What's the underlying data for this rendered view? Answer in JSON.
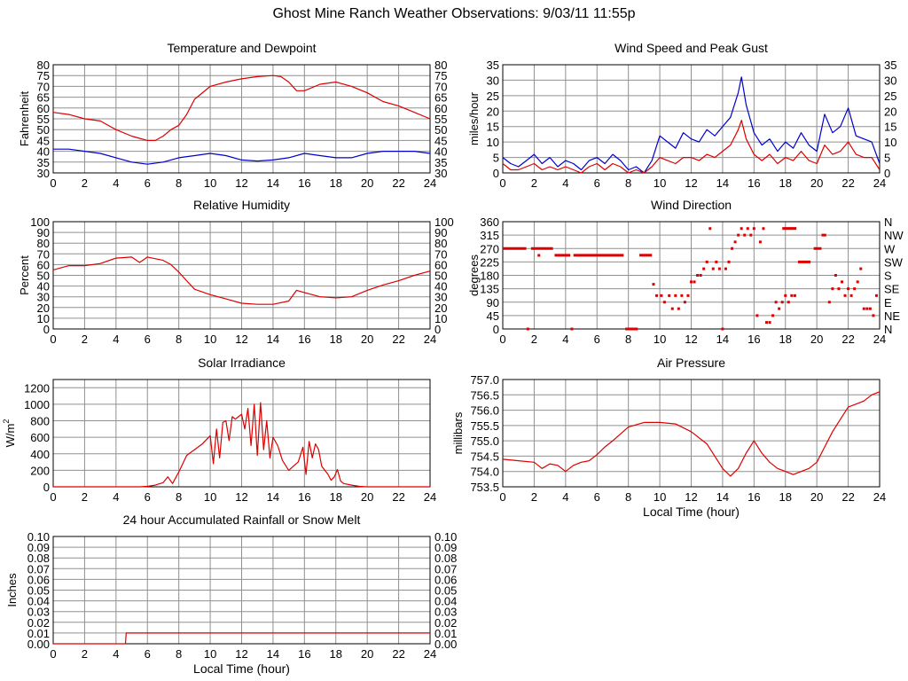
{
  "page": {
    "title": "Ghost Mine Ranch Weather Observations: 9/03/11 11:55p"
  },
  "colors": {
    "red": "#dd0000",
    "blue": "#0000cc",
    "grid": "#909090",
    "frame": "#000000"
  },
  "chart_data": [
    {
      "id": "temperature",
      "type": "line",
      "title": "Temperature and Dewpoint",
      "xlabel": "",
      "ylabel": "Fahrenheit",
      "xlim": [
        0,
        24
      ],
      "ylim": [
        30,
        80
      ],
      "xticks": [
        0,
        2,
        4,
        6,
        8,
        10,
        12,
        14,
        16,
        18,
        20,
        22,
        24
      ],
      "yticks": [
        30,
        35,
        40,
        45,
        50,
        55,
        60,
        65,
        70,
        75,
        80
      ],
      "right_ticks": [
        "30",
        "35",
        "40",
        "45",
        "50",
        "55",
        "60",
        "65",
        "70",
        "75",
        "80"
      ],
      "series": [
        {
          "name": "Temperature",
          "color": "red",
          "x": [
            0,
            1,
            2,
            3,
            4,
            5,
            5.5,
            6,
            6.5,
            7,
            7.5,
            8,
            8.5,
            9,
            10,
            11,
            12,
            13,
            14,
            14.5,
            15,
            15.5,
            16,
            17,
            18,
            19,
            20,
            21,
            22,
            23,
            24
          ],
          "y": [
            58,
            57,
            55,
            54,
            50,
            47,
            46,
            45,
            45,
            47,
            50,
            52,
            57,
            64,
            70,
            72,
            73.5,
            74.5,
            75,
            74.5,
            72,
            68,
            68,
            71,
            72,
            70,
            67,
            63,
            61,
            58,
            55
          ]
        },
        {
          "name": "Dewpoint",
          "color": "blue",
          "x": [
            0,
            1,
            2,
            3,
            4,
            5,
            6,
            7,
            8,
            9,
            10,
            11,
            12,
            13,
            14,
            15,
            16,
            17,
            18,
            19,
            20,
            21,
            22,
            23,
            24
          ],
          "y": [
            41,
            41,
            40,
            39,
            37,
            35,
            34,
            35,
            37,
            38,
            39,
            38,
            36,
            35.5,
            36,
            37,
            39,
            38,
            37,
            37,
            39,
            40,
            40,
            40,
            39
          ]
        }
      ]
    },
    {
      "id": "wind-speed",
      "type": "line",
      "title": "Wind Speed and Peak Gust",
      "xlabel": "",
      "ylabel": "miles/hour",
      "xlim": [
        0,
        24
      ],
      "ylim": [
        0,
        35
      ],
      "xticks": [
        0,
        2,
        4,
        6,
        8,
        10,
        12,
        14,
        16,
        18,
        20,
        22,
        24
      ],
      "yticks": [
        0,
        5,
        10,
        15,
        20,
        25,
        30,
        35
      ],
      "right_ticks": [
        "0",
        "5",
        "10",
        "15",
        "20",
        "25",
        "30",
        "35"
      ],
      "series": [
        {
          "name": "Peak Gust",
          "color": "blue",
          "x": [
            0,
            0.5,
            1,
            1.5,
            2,
            2.5,
            3,
            3.5,
            4,
            4.5,
            5,
            5.5,
            6,
            6.5,
            7,
            7.5,
            8,
            8.5,
            9,
            9.5,
            10,
            10.5,
            11,
            11.5,
            12,
            12.5,
            13,
            13.5,
            14,
            14.5,
            15,
            15.2,
            15.5,
            16,
            16.5,
            17,
            17.5,
            18,
            18.5,
            19,
            19.5,
            20,
            20.5,
            21,
            21.5,
            22,
            22.5,
            23,
            23.5,
            24
          ],
          "y": [
            5,
            3,
            2,
            4,
            6,
            3,
            5,
            2,
            4,
            3,
            1,
            4,
            5,
            3,
            6,
            4,
            1,
            2,
            0,
            4,
            12,
            10,
            8,
            13,
            11,
            10,
            14,
            12,
            15,
            18,
            26,
            31,
            22,
            13,
            9,
            11,
            7,
            10,
            8,
            13,
            9,
            7,
            19,
            13,
            15,
            21,
            12,
            11,
            10,
            3
          ]
        },
        {
          "name": "Wind Speed",
          "color": "red",
          "x": [
            0,
            0.5,
            1,
            1.5,
            2,
            2.5,
            3,
            3.5,
            4,
            4.5,
            5,
            5.5,
            6,
            6.5,
            7,
            7.5,
            8,
            8.5,
            9,
            9.5,
            10,
            10.5,
            11,
            11.5,
            12,
            12.5,
            13,
            13.5,
            14,
            14.5,
            15,
            15.2,
            15.5,
            16,
            16.5,
            17,
            17.5,
            18,
            18.5,
            19,
            19.5,
            20,
            20.5,
            21,
            21.5,
            22,
            22.5,
            23,
            23.5,
            24
          ],
          "y": [
            3,
            1,
            1,
            2,
            3,
            1,
            2,
            1,
            2,
            1,
            0,
            2,
            3,
            1,
            3,
            2,
            0,
            1,
            0,
            2,
            5,
            4,
            3,
            5,
            5,
            4,
            6,
            5,
            7,
            9,
            14,
            17,
            11,
            6,
            4,
            6,
            3,
            5,
            4,
            7,
            4,
            3,
            9,
            6,
            7,
            10,
            6,
            5,
            5,
            1
          ]
        }
      ]
    },
    {
      "id": "humidity",
      "type": "line",
      "title": "Relative Humidity",
      "xlabel": "",
      "ylabel": "Percent",
      "xlim": [
        0,
        24
      ],
      "ylim": [
        0,
        100
      ],
      "xticks": [
        0,
        2,
        4,
        6,
        8,
        10,
        12,
        14,
        16,
        18,
        20,
        22,
        24
      ],
      "yticks": [
        0,
        10,
        20,
        30,
        40,
        50,
        60,
        70,
        80,
        90,
        100
      ],
      "right_ticks": [
        "0",
        "10",
        "20",
        "30",
        "40",
        "50",
        "60",
        "70",
        "80",
        "90",
        "100"
      ],
      "series": [
        {
          "name": "Relative Humidity",
          "color": "red",
          "x": [
            0,
            1,
            2,
            3,
            4,
            5,
            5.5,
            6,
            7,
            7.5,
            8,
            8.5,
            9,
            10,
            11,
            12,
            13,
            14,
            15,
            15.5,
            16,
            17,
            18,
            19,
            20,
            21,
            22,
            23,
            24
          ],
          "y": [
            55,
            59,
            59,
            61,
            66,
            67,
            62,
            67,
            64,
            60,
            53,
            45,
            37,
            32,
            28,
            24,
            23,
            23,
            26,
            36,
            34,
            30,
            29,
            30,
            36,
            41,
            45,
            50,
            54
          ]
        }
      ]
    },
    {
      "id": "wind-direction",
      "type": "scatter",
      "title": "Wind Direction",
      "xlabel": "",
      "ylabel": "degrees",
      "xlim": [
        0,
        24
      ],
      "ylim": [
        0,
        360
      ],
      "xticks": [
        0,
        2,
        4,
        6,
        8,
        10,
        12,
        14,
        16,
        18,
        20,
        22,
        24
      ],
      "yticks": [
        0,
        45,
        90,
        135,
        180,
        225,
        270,
        315,
        360
      ],
      "right_ticks": [
        "N",
        "NE",
        "E",
        "SE",
        "S",
        "SW",
        "W",
        "NW",
        "N"
      ],
      "segments": [
        {
          "x0": 0,
          "x1": 1.5,
          "y": 270
        },
        {
          "x0": 1.8,
          "x1": 3.2,
          "y": 270
        },
        {
          "x0": 3.3,
          "x1": 4.3,
          "y": 247.5
        },
        {
          "x0": 4.5,
          "x1": 7.7,
          "y": 247.5
        },
        {
          "x0": 8.7,
          "x1": 9.5,
          "y": 247.5
        },
        {
          "x0": 7.8,
          "x1": 8.6,
          "y": 0
        },
        {
          "x0": 17.8,
          "x1": 18.7,
          "y": 337.5
        },
        {
          "x0": 18.8,
          "x1": 19.6,
          "y": 225
        },
        {
          "x0": 19.8,
          "x1": 20.3,
          "y": 270
        },
        {
          "x0": 20.3,
          "x1": 20.6,
          "y": 315
        }
      ],
      "points": {
        "x": [
          1.6,
          2.3,
          4.4,
          9.6,
          9.8,
          10.1,
          10.3,
          10.6,
          10.8,
          11.0,
          11.2,
          11.4,
          11.6,
          11.8,
          12.0,
          12.2,
          12.4,
          12.6,
          12.8,
          13.0,
          13.2,
          13.4,
          13.6,
          13.8,
          14.0,
          14.2,
          14.4,
          14.6,
          14.8,
          15.0,
          15.2,
          15.4,
          15.6,
          15.8,
          16.0,
          16.2,
          16.4,
          16.6,
          16.8,
          17.0,
          17.2,
          17.4,
          17.6,
          17.8,
          18.0,
          18.2,
          18.4,
          18.6,
          20.8,
          21.0,
          21.2,
          21.4,
          21.6,
          21.8,
          22.0,
          22.2,
          22.4,
          22.6,
          22.8,
          23.0,
          23.2,
          23.4,
          23.6,
          23.8
        ],
        "y": [
          0,
          247,
          0,
          150,
          112,
          112,
          90,
          112,
          68,
          112,
          68,
          112,
          90,
          112,
          158,
          158,
          180,
          180,
          202,
          225,
          337,
          202,
          225,
          202,
          0,
          202,
          225,
          270,
          292,
          315,
          337,
          315,
          337,
          315,
          337,
          45,
          292,
          337,
          22,
          22,
          45,
          90,
          68,
          90,
          112,
          90,
          112,
          112,
          90,
          135,
          180,
          135,
          158,
          112,
          135,
          112,
          135,
          158,
          202,
          68,
          68,
          68,
          45,
          112
        ]
      }
    },
    {
      "id": "solar",
      "type": "line",
      "title": "Solar Irradiance",
      "xlabel": "",
      "ylabel": "W/m",
      "ylabel_sup": "2",
      "xlim": [
        0,
        24
      ],
      "ylim": [
        0,
        1300
      ],
      "xticks": [
        0,
        2,
        4,
        6,
        8,
        10,
        12,
        14,
        16,
        18,
        20,
        22,
        24
      ],
      "yticks": [
        0,
        200,
        400,
        600,
        800,
        1000,
        1200
      ],
      "series": [
        {
          "name": "Solar Irradiance",
          "color": "red",
          "x": [
            0,
            5.5,
            6,
            6.5,
            7,
            7.3,
            7.6,
            8,
            8.5,
            9,
            9.5,
            10,
            10.2,
            10.4,
            10.6,
            10.8,
            11,
            11.2,
            11.4,
            11.6,
            11.8,
            12,
            12.2,
            12.4,
            12.6,
            12.8,
            13,
            13.2,
            13.4,
            13.6,
            13.8,
            14,
            14.3,
            14.6,
            15,
            15.3,
            15.6,
            15.9,
            16.1,
            16.3,
            16.5,
            16.7,
            16.9,
            17.1,
            17.3,
            17.5,
            17.7,
            17.9,
            18.1,
            18.3,
            18.5,
            19,
            19.5,
            20,
            24
          ],
          "y": [
            0,
            0,
            5,
            20,
            50,
            120,
            40,
            180,
            380,
            450,
            520,
            620,
            280,
            700,
            350,
            780,
            800,
            560,
            850,
            820,
            850,
            880,
            700,
            950,
            500,
            1000,
            380,
            1020,
            450,
            800,
            350,
            600,
            500,
            320,
            200,
            250,
            300,
            480,
            150,
            550,
            350,
            520,
            450,
            250,
            200,
            150,
            80,
            120,
            210,
            70,
            40,
            20,
            5,
            0,
            0
          ]
        }
      ]
    },
    {
      "id": "pressure",
      "type": "line",
      "title": "Air Pressure",
      "xlabel": "Local Time (hour)",
      "ylabel": "millibars",
      "xlim": [
        0,
        24
      ],
      "ylim": [
        753.5,
        757.0
      ],
      "xticks": [
        0,
        2,
        4,
        6,
        8,
        10,
        12,
        14,
        16,
        18,
        20,
        22,
        24
      ],
      "yticks": [
        753.5,
        754.0,
        754.5,
        755.0,
        755.5,
        756.0,
        756.5,
        757.0
      ],
      "series": [
        {
          "name": "Air Pressure",
          "color": "red",
          "x": [
            0,
            1,
            2,
            2.5,
            3,
            3.5,
            4,
            4.5,
            5,
            5.5,
            6,
            6.5,
            7,
            8,
            9,
            10,
            11,
            12,
            13,
            13.5,
            14,
            14.5,
            15,
            15.5,
            16,
            16.5,
            17,
            17.5,
            18,
            18.5,
            19,
            19.5,
            20,
            20.5,
            21,
            21.5,
            22,
            22.5,
            23,
            23.5,
            24
          ],
          "y": [
            754.4,
            754.35,
            754.3,
            754.1,
            754.25,
            754.2,
            754.0,
            754.2,
            754.3,
            754.35,
            754.55,
            754.8,
            755.0,
            755.45,
            755.6,
            755.6,
            755.55,
            755.3,
            754.9,
            754.5,
            754.1,
            753.85,
            754.1,
            754.6,
            755.0,
            754.6,
            754.3,
            754.1,
            754.0,
            753.9,
            754.0,
            754.1,
            754.3,
            754.8,
            755.3,
            755.7,
            756.1,
            756.2,
            756.3,
            756.5,
            756.6
          ]
        }
      ]
    },
    {
      "id": "rainfall",
      "type": "line",
      "title": "24 hour Accumulated Rainfall or Snow Melt",
      "xlabel": "Local Time (hour)",
      "ylabel": "Inches",
      "xlim": [
        0,
        24
      ],
      "ylim": [
        0,
        0.1
      ],
      "xticks": [
        0,
        2,
        4,
        6,
        8,
        10,
        12,
        14,
        16,
        18,
        20,
        22,
        24
      ],
      "yticks": [
        0.0,
        0.01,
        0.02,
        0.03,
        0.04,
        0.05,
        0.06,
        0.07,
        0.08,
        0.09,
        0.1
      ],
      "right_ticks": [
        "0.00",
        "0.01",
        "0.02",
        "0.03",
        "0.04",
        "0.05",
        "0.06",
        "0.07",
        "0.08",
        "0.09",
        "0.10"
      ],
      "series": [
        {
          "name": "Accumulated Rainfall",
          "color": "red",
          "x": [
            0,
            4.6,
            4.65,
            24
          ],
          "y": [
            0,
            0,
            0.01,
            0.01
          ]
        }
      ]
    }
  ]
}
